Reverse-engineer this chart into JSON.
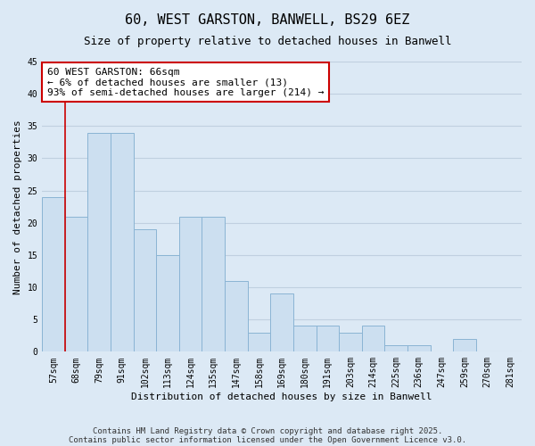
{
  "title": "60, WEST GARSTON, BANWELL, BS29 6EZ",
  "subtitle": "Size of property relative to detached houses in Banwell",
  "xlabel": "Distribution of detached houses by size in Banwell",
  "ylabel": "Number of detached properties",
  "bar_labels": [
    "57sqm",
    "68sqm",
    "79sqm",
    "91sqm",
    "102sqm",
    "113sqm",
    "124sqm",
    "135sqm",
    "147sqm",
    "158sqm",
    "169sqm",
    "180sqm",
    "191sqm",
    "203sqm",
    "214sqm",
    "225sqm",
    "236sqm",
    "247sqm",
    "259sqm",
    "270sqm",
    "281sqm"
  ],
  "bar_values": [
    24,
    21,
    34,
    34,
    19,
    15,
    21,
    21,
    11,
    3,
    9,
    4,
    4,
    3,
    4,
    1,
    1,
    0,
    2,
    0,
    0
  ],
  "bar_color": "#ccdff0",
  "bar_edge_color": "#8ab4d4",
  "highlight_line_color": "#cc0000",
  "annotation_box_text": "60 WEST GARSTON: 66sqm\n← 6% of detached houses are smaller (13)\n93% of semi-detached houses are larger (214) →",
  "annotation_box_color": "#cc0000",
  "annotation_box_facecolor": "white",
  "ylim": [
    0,
    45
  ],
  "yticks": [
    0,
    5,
    10,
    15,
    20,
    25,
    30,
    35,
    40,
    45
  ],
  "grid_color": "#c0d0e0",
  "background_color": "#dce9f5",
  "footer_line1": "Contains HM Land Registry data © Crown copyright and database right 2025.",
  "footer_line2": "Contains public sector information licensed under the Open Government Licence v3.0.",
  "title_fontsize": 11,
  "subtitle_fontsize": 9,
  "axis_label_fontsize": 8,
  "tick_fontsize": 7,
  "annotation_fontsize": 8,
  "footer_fontsize": 6.5
}
